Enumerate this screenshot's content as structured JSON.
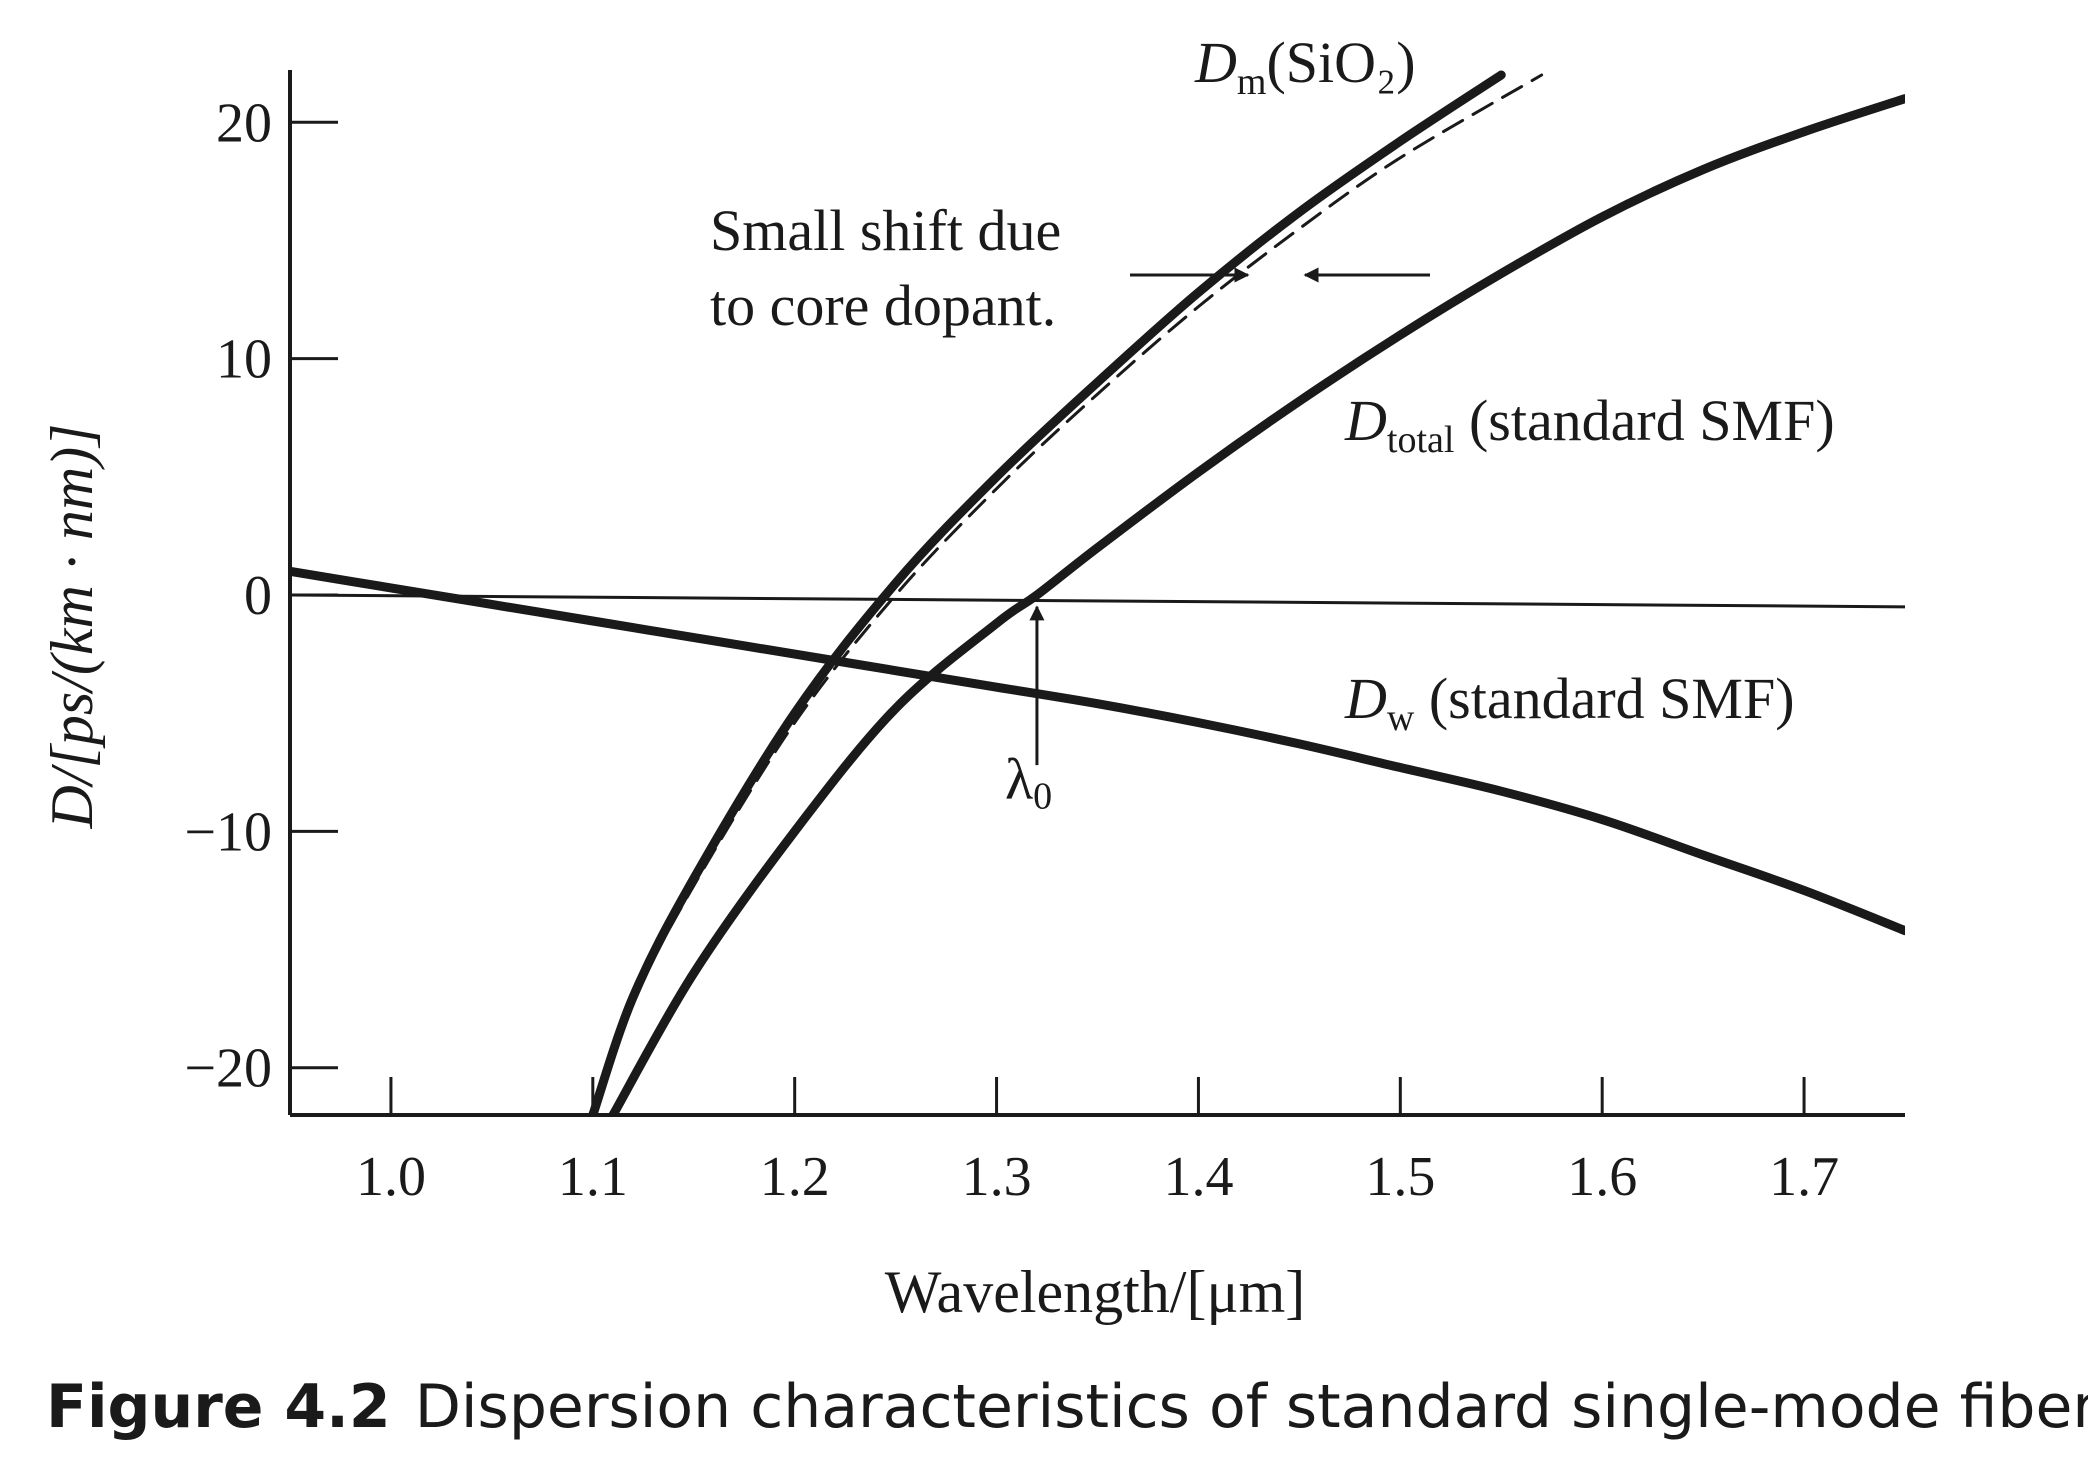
{
  "chart_data": {
    "type": "line",
    "xlabel": "Wavelength/[μm]",
    "ylabel": "D/[ps/(km · nm)]",
    "xlim": [
      0.95,
      1.75
    ],
    "ylim": [
      -22,
      22
    ],
    "x_ticks": [
      1.0,
      1.1,
      1.2,
      1.3,
      1.4,
      1.5,
      1.6,
      1.7
    ],
    "x_tick_labels": [
      "1.0",
      "1.1",
      "1.2",
      "1.3",
      "1.4",
      "1.5",
      "1.6",
      "1.7"
    ],
    "y_ticks": [
      20,
      10,
      0,
      -10,
      -20
    ],
    "y_tick_labels": [
      "20",
      "10",
      "0",
      "−10",
      "−20"
    ],
    "grid": false,
    "series": [
      {
        "name_main": "D",
        "name_sub": "m",
        "name_suffix": "(SiO₂)",
        "style": "solid",
        "color": "#1a1a1a",
        "x": [
          1.1,
          1.12,
          1.15,
          1.2,
          1.25,
          1.3,
          1.35,
          1.4,
          1.45,
          1.5,
          1.55
        ],
        "y": [
          -22,
          -17,
          -12,
          -5,
          0.5,
          5,
          9,
          12.8,
          16.2,
          19.2,
          22
        ]
      },
      {
        "name": "",
        "style": "dashed",
        "color": "#1a1a1a",
        "x": [
          1.1,
          1.12,
          1.15,
          1.2,
          1.25,
          1.3,
          1.35,
          1.4,
          1.45,
          1.5,
          1.57
        ],
        "y": [
          -22,
          -17.2,
          -12.3,
          -5.4,
          0,
          4.5,
          8.5,
          12.2,
          15.5,
          18.5,
          22
        ]
      },
      {
        "name_main": "D",
        "name_sub": "total",
        "name_suffix": " (standard SMF)",
        "style": "solid",
        "color": "#1a1a1a",
        "x": [
          1.11,
          1.15,
          1.2,
          1.25,
          1.3,
          1.32,
          1.35,
          1.4,
          1.45,
          1.5,
          1.55,
          1.6,
          1.65,
          1.7,
          1.75
        ],
        "y": [
          -22,
          -16,
          -10,
          -4.8,
          -1.2,
          0,
          2,
          5.2,
          8.2,
          11,
          13.6,
          16,
          18,
          19.6,
          21
        ]
      },
      {
        "name_main": "D",
        "name_sub": "w",
        "name_suffix": " (standard SMF)",
        "style": "solid",
        "color": "#1a1a1a",
        "x": [
          0.95,
          1.0,
          1.05,
          1.1,
          1.15,
          1.2,
          1.25,
          1.3,
          1.35,
          1.4,
          1.45,
          1.5,
          1.55,
          1.6,
          1.65,
          1.7,
          1.75
        ],
        "y": [
          1,
          0.3,
          -0.4,
          -1.1,
          -1.8,
          -2.5,
          -3.2,
          -3.9,
          -4.6,
          -5.4,
          -6.3,
          -7.3,
          -8.3,
          -9.5,
          -11,
          -12.5,
          -14.2
        ]
      }
    ],
    "zero_line": {
      "x": [
        0.95,
        1.75
      ],
      "y": [
        0,
        -0.5
      ]
    },
    "annotations": {
      "shift_line1": "Small shift due",
      "shift_line2": "to core dopant.",
      "lambda_main": "λ",
      "lambda_sub": "0",
      "lambda_x": 1.32
    }
  },
  "caption": {
    "number": "Figure 4.2",
    "text": "Dispersion characteristics of standard single-mode fiber."
  }
}
